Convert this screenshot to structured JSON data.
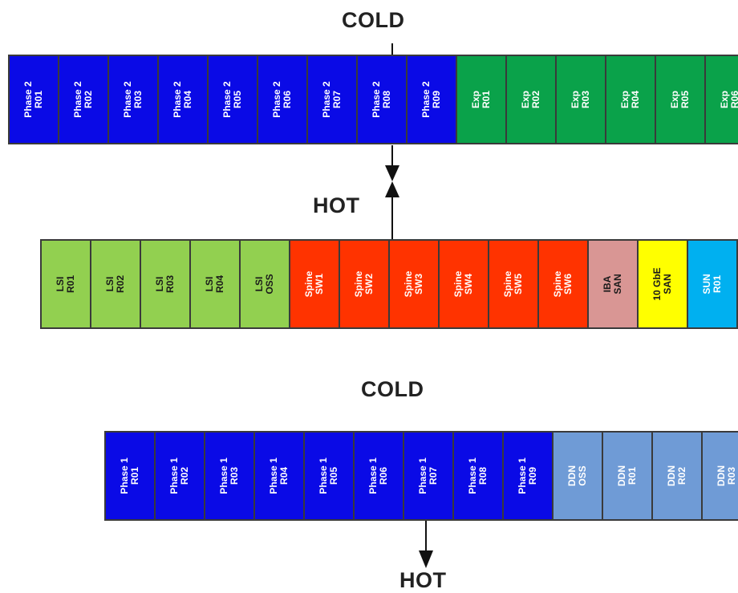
{
  "labels": {
    "cold_top": "COLD",
    "hot_middle": "HOT",
    "cold_bottom": "COLD",
    "hot_bottom": "HOT"
  },
  "colors": {
    "phase": "#0a0ae6",
    "exp": "#0aa24a",
    "lsi": "#92d050",
    "spine": "#ff3300",
    "iba": "#d99694",
    "gbe": "#ffff00",
    "sun": "#00b0f0",
    "ddn": "#6f9bd6"
  },
  "rows": [
    {
      "id": "row-1",
      "racks": [
        {
          "text": "Phase 2\nR01",
          "kind": "phase"
        },
        {
          "text": "Phase 2\nR02",
          "kind": "phase"
        },
        {
          "text": "Phase 2\nR03",
          "kind": "phase"
        },
        {
          "text": "Phase 2\nR04",
          "kind": "phase"
        },
        {
          "text": "Phase 2\nR05",
          "kind": "phase"
        },
        {
          "text": "Phase 2\nR06",
          "kind": "phase"
        },
        {
          "text": "Phase 2\nR07",
          "kind": "phase"
        },
        {
          "text": "Phase 2\nR08",
          "kind": "phase"
        },
        {
          "text": "Phase 2\nR09",
          "kind": "phase"
        },
        {
          "text": "Exp\nR01",
          "kind": "exp"
        },
        {
          "text": "Exp\nR02",
          "kind": "exp"
        },
        {
          "text": "Exp\nR03",
          "kind": "exp"
        },
        {
          "text": "Exp\nR04",
          "kind": "exp"
        },
        {
          "text": "Exp\nR05",
          "kind": "exp"
        },
        {
          "text": "Exp\nR06",
          "kind": "exp"
        }
      ]
    },
    {
      "id": "row-2",
      "racks": [
        {
          "text": "LSI\nR01",
          "kind": "lsi"
        },
        {
          "text": "LSI\nR02",
          "kind": "lsi"
        },
        {
          "text": "LSI\nR03",
          "kind": "lsi"
        },
        {
          "text": "LSI\nR04",
          "kind": "lsi"
        },
        {
          "text": "LSI\nOSS",
          "kind": "lsi"
        },
        {
          "text": "Spine\nSW1",
          "kind": "spine"
        },
        {
          "text": "Spine\nSW2",
          "kind": "spine"
        },
        {
          "text": "Spine\nSW3",
          "kind": "spine"
        },
        {
          "text": "Spine\nSW4",
          "kind": "spine"
        },
        {
          "text": "Spine\nSW5",
          "kind": "spine"
        },
        {
          "text": "Spine\nSW6",
          "kind": "spine"
        },
        {
          "text": "IBA\nSAN",
          "kind": "iba"
        },
        {
          "text": "10 GbE\nSAN",
          "kind": "gbe"
        },
        {
          "text": "SUN\nR01",
          "kind": "sun"
        }
      ]
    },
    {
      "id": "row-3",
      "racks": [
        {
          "text": "Phase 1\nR01",
          "kind": "phase"
        },
        {
          "text": "Phase 1\nR02",
          "kind": "phase"
        },
        {
          "text": "Phase 1\nR03",
          "kind": "phase"
        },
        {
          "text": "Phase 1\nR04",
          "kind": "phase"
        },
        {
          "text": "Phase 1\nR05",
          "kind": "phase"
        },
        {
          "text": "Phase 1\nR06",
          "kind": "phase"
        },
        {
          "text": "Phase 1\nR07",
          "kind": "phase"
        },
        {
          "text": "Phase 1\nR08",
          "kind": "phase"
        },
        {
          "text": "Phase 1\nR09",
          "kind": "phase"
        },
        {
          "text": "DDN\nOSS",
          "kind": "ddn"
        },
        {
          "text": "DDN\nR01",
          "kind": "ddn"
        },
        {
          "text": "DDN\nR02",
          "kind": "ddn"
        },
        {
          "text": "DDN\nR03",
          "kind": "ddn"
        }
      ]
    }
  ]
}
